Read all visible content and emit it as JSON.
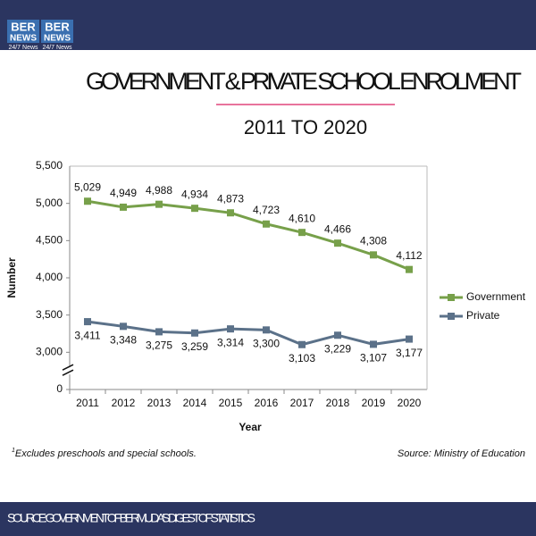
{
  "logo": {
    "top": "BER",
    "middle": "NEWS",
    "bottom": "24/7 News"
  },
  "chart_data": {
    "type": "line",
    "title": "GOVERNMENT &  PRIVATE SCHOOL ENROLMENT",
    "subtitle": "2011 TO 2020",
    "x_label": "Year",
    "y_label": "Number",
    "categories": [
      "2011",
      "2012",
      "2013",
      "2014",
      "2015",
      "2016",
      "2017",
      "2018",
      "2019",
      "2020"
    ],
    "series": [
      {
        "name": "Government",
        "color": "#77a04a",
        "values": [
          5029,
          4949,
          4988,
          4934,
          4873,
          4723,
          4610,
          4466,
          4308,
          4112
        ],
        "value_labels": [
          "5,029",
          "4,949",
          "4,988",
          "4,934",
          "4,873",
          "4,723",
          "4,610",
          "4,466",
          "4,308",
          "4,112"
        ]
      },
      {
        "name": "Private",
        "color": "#5b7189",
        "values": [
          3411,
          3348,
          3275,
          3259,
          3314,
          3300,
          3103,
          3229,
          3107,
          3177
        ],
        "value_labels": [
          "3,411",
          "3,348",
          "3,275",
          "3,259",
          "3,314",
          "3,300",
          "3,103",
          "3,229",
          "3,107",
          "3,177"
        ]
      }
    ],
    "ylim": [
      0,
      5500
    ],
    "y_break": [
      0,
      3000
    ],
    "yticks": [
      0,
      {
        "value": 3000,
        "label": "3,000"
      },
      {
        "value": 3500,
        "label": "3,500"
      },
      {
        "value": 4000,
        "label": "4,000"
      },
      {
        "value": 4500,
        "label": "4,500"
      },
      {
        "value": 5000,
        "label": "5,000"
      },
      {
        "value": 5500,
        "label": "5,500"
      }
    ],
    "grid": true,
    "legend": "right",
    "footnote_marker": "1",
    "footnote": "Excludes preschools and special schools.",
    "source": "Source: Ministry of Education"
  },
  "footer": "SOURCE: GOVERNMENT OF BERMUDA'S DIGEST OF STATISTICS"
}
